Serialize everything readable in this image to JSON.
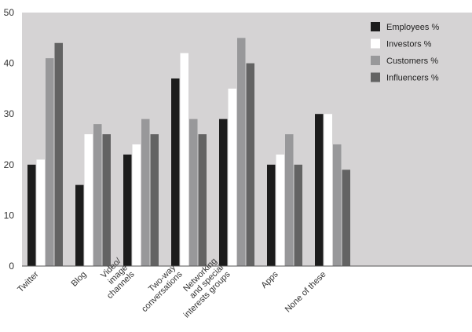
{
  "chart_data": {
    "type": "bar",
    "title": "",
    "xlabel": "",
    "ylabel": "",
    "ylim": [
      0,
      50
    ],
    "yticks": [
      0,
      10,
      20,
      30,
      40,
      50
    ],
    "grid": false,
    "legend_position": "top-right",
    "plot_background": "#d5d3d4",
    "categories": [
      [
        "Twitter"
      ],
      [
        "Blog"
      ],
      [
        "Video/",
        "image",
        "channels"
      ],
      [
        "Two-way",
        "conversations"
      ],
      [
        "Networking",
        "and special",
        "interests groups"
      ],
      [
        "Apps"
      ],
      [
        "None of these"
      ]
    ],
    "series": [
      {
        "name": "Employees %",
        "color": "#1c1c1c",
        "values": [
          20,
          16,
          22,
          37,
          29,
          20,
          30
        ]
      },
      {
        "name": "Investors %",
        "color": "#ffffff",
        "values": [
          21,
          26,
          24,
          42,
          35,
          22,
          30
        ]
      },
      {
        "name": "Customers %",
        "color": "#98989a",
        "values": [
          41,
          28,
          29,
          29,
          45,
          26,
          24
        ]
      },
      {
        "name": "Influencers %",
        "color": "#636363",
        "values": [
          44,
          26,
          26,
          26,
          40,
          20,
          19
        ]
      }
    ]
  }
}
